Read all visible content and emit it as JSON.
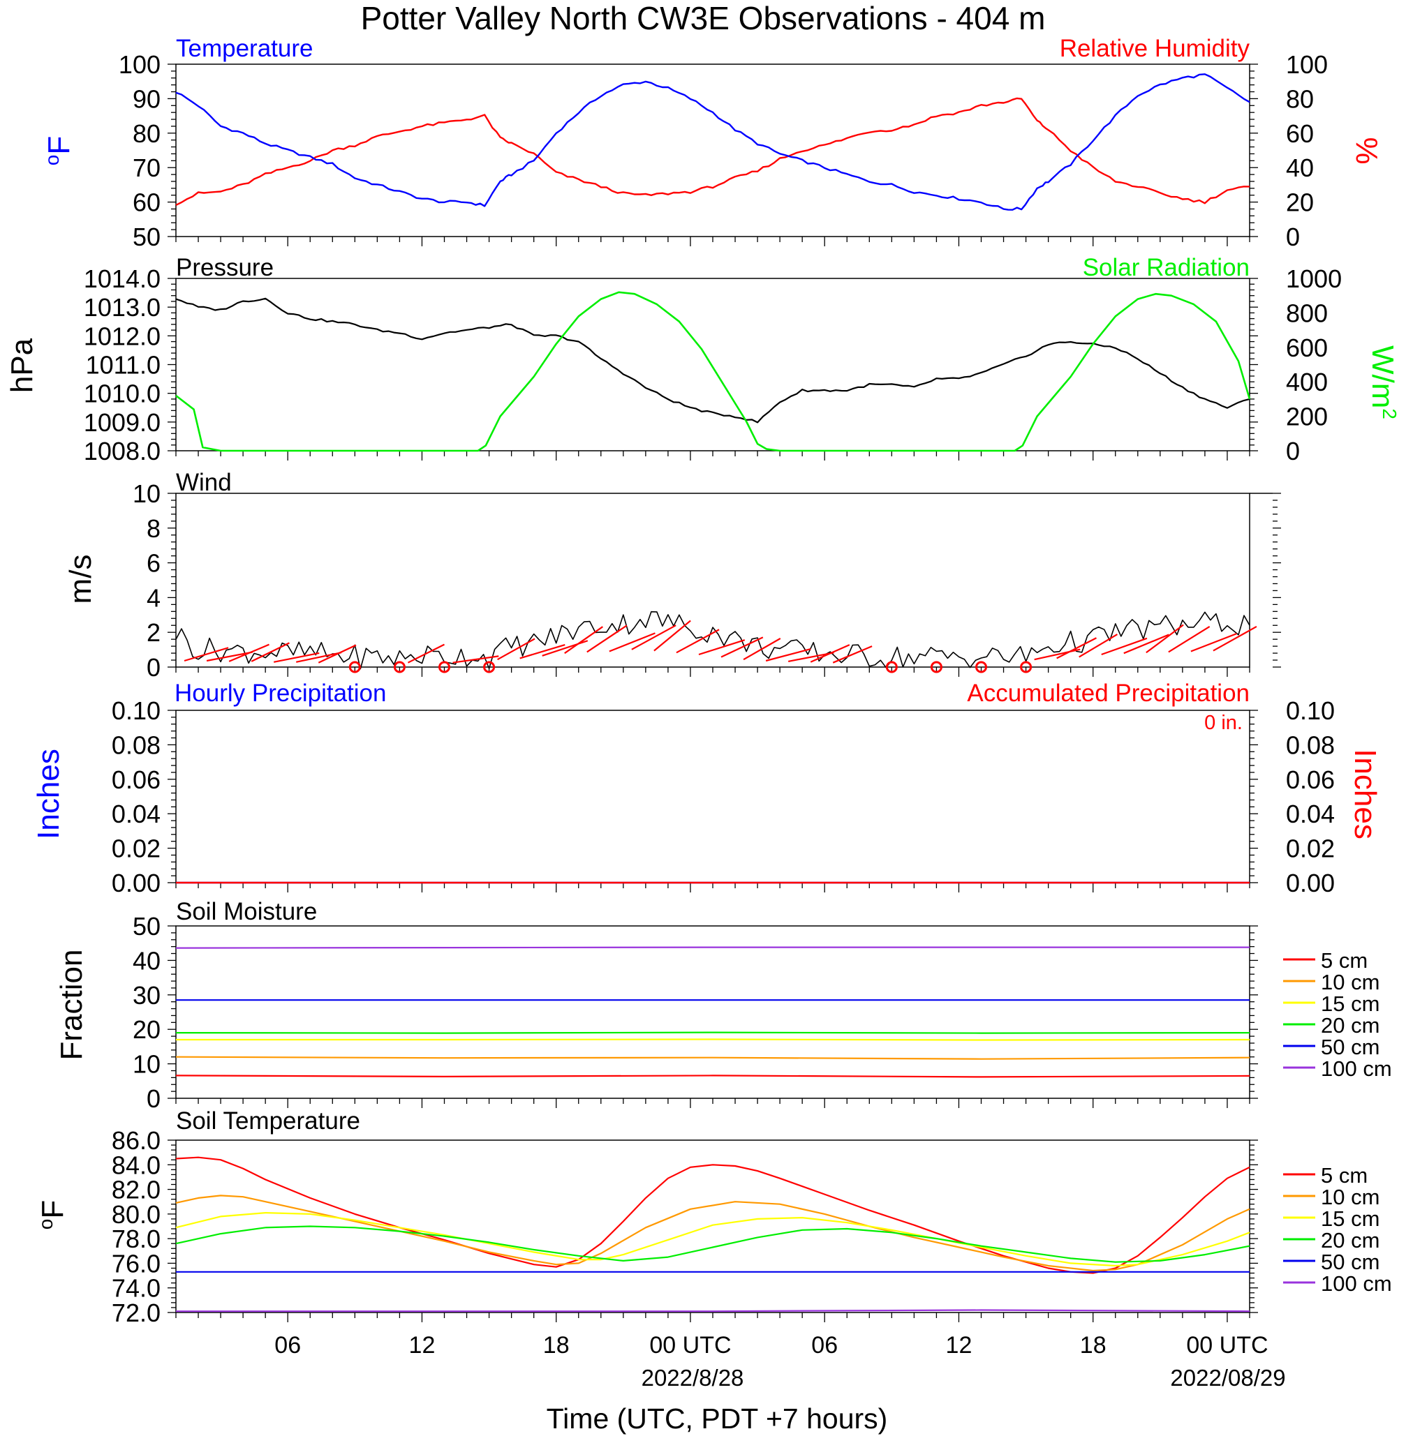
{
  "title": "Potter Valley North CW3E Observations - 404 m",
  "time_axis": {
    "ticks": [
      "06",
      "12",
      "18",
      "00 UTC",
      "06",
      "12",
      "18",
      "00 UTC"
    ],
    "dates": [
      "2022/8/28",
      "2022/08/29"
    ],
    "label": "Time (UTC, PDT +7 hours)"
  },
  "colors": {
    "temperature": "#0000ff",
    "humidity": "#ff0000",
    "pressure": "#000000",
    "solar": "#00ee00",
    "wind": "#000000",
    "barb": "#ff0000",
    "hourly_precip": "#0000ff",
    "accum_precip": "#ff0000",
    "depths": [
      "#ff0000",
      "#ff9900",
      "#ffff00",
      "#00ee00",
      "#0000ee",
      "#9933dd"
    ]
  },
  "panels": {
    "temp_rh": {
      "left_title": "Temperature",
      "right_title": "Relative Humidity",
      "left_units": "oF",
      "right_units": "%",
      "left_ticks": [
        "50",
        "60",
        "70",
        "80",
        "90",
        "100"
      ],
      "right_ticks": [
        "0",
        "20",
        "40",
        "60",
        "80",
        "100"
      ]
    },
    "pressure_solar": {
      "left_title": "Pressure",
      "right_title": "Solar Radiation",
      "left_units": "hPa",
      "right_units": "W/m2",
      "left_ticks": [
        "1008.0",
        "1009.0",
        "1010.0",
        "1011.0",
        "1012.0",
        "1013.0",
        "1014.0"
      ],
      "right_ticks": [
        "0",
        "200",
        "400",
        "600",
        "800",
        "1000"
      ]
    },
    "wind": {
      "title": "Wind",
      "units": "m/s",
      "ticks": [
        "0",
        "2",
        "4",
        "6",
        "8",
        "10"
      ]
    },
    "precip": {
      "left_title": "Hourly Precipitation",
      "right_title": "Accumulated Precipitation",
      "total": "0 in.",
      "left_units": "Inches",
      "right_units": "Inches",
      "ticks": [
        "0.00",
        "0.02",
        "0.04",
        "0.06",
        "0.08",
        "0.10"
      ]
    },
    "soil_moisture": {
      "title": "Soil Moisture",
      "units": "Fraction",
      "ticks": [
        "0",
        "10",
        "20",
        "30",
        "40",
        "50"
      ],
      "legend": [
        "5 cm",
        "10 cm",
        "15 cm",
        "20 cm",
        "50 cm",
        "100 cm"
      ]
    },
    "soil_temp": {
      "title": "Soil Temperature",
      "units": "oF",
      "ticks": [
        "72.0",
        "74.0",
        "76.0",
        "78.0",
        "80.0",
        "82.0",
        "84.0",
        "86.0"
      ],
      "legend": [
        "5 cm",
        "10 cm",
        "15 cm",
        "20 cm",
        "50 cm",
        "100 cm"
      ]
    }
  },
  "chart_data": [
    {
      "type": "line",
      "title": "Temperature / Relative Humidity",
      "x_units": "hours since 2022-08-27 00 UTC",
      "xlim": [
        1,
        49
      ],
      "ylim": [
        50,
        100
      ],
      "y2lim": [
        0,
        100
      ],
      "series": [
        {
          "name": "Temperature",
          "axis": "left",
          "x": [
            1,
            2,
            3,
            4,
            5,
            6,
            7,
            8,
            9,
            10,
            11,
            12,
            13,
            14,
            14.8,
            15.5,
            16,
            17,
            18,
            19,
            20,
            21,
            22,
            23,
            24,
            25,
            26,
            27,
            28,
            29,
            30,
            31,
            32,
            33,
            34,
            35,
            36,
            37,
            38,
            38.8,
            39.5,
            40,
            41,
            42,
            43,
            44,
            45,
            46,
            47,
            48,
            49
          ],
          "y": [
            92,
            88,
            82,
            80,
            77,
            75,
            73,
            71,
            67,
            65,
            63,
            61,
            60,
            60,
            59,
            66,
            68,
            72,
            80,
            86,
            91,
            94,
            95,
            93,
            90,
            86,
            81,
            77,
            74,
            72,
            70,
            68,
            66,
            65,
            63,
            62,
            61,
            60,
            58,
            58,
            64,
            66,
            71,
            78,
            85,
            91,
            94,
            96,
            97,
            93,
            89
          ]
        },
        {
          "name": "Relative Humidity",
          "axis": "right",
          "x": [
            1,
            2,
            3,
            4,
            5,
            6,
            7,
            8,
            9,
            10,
            11,
            12,
            13,
            14,
            14.8,
            15.5,
            16,
            17,
            18,
            19,
            20,
            21,
            22,
            23,
            24,
            25,
            26,
            27,
            28,
            29,
            30,
            31,
            32,
            33,
            34,
            35,
            36,
            37,
            38,
            38.8,
            39.5,
            40,
            41,
            42,
            43,
            44,
            45,
            46,
            47,
            48,
            49
          ],
          "y": [
            19,
            25,
            26,
            30,
            36,
            40,
            44,
            50,
            53,
            58,
            61,
            64,
            66,
            68,
            70,
            57,
            54,
            48,
            37,
            33,
            29,
            25,
            24,
            25,
            26,
            29,
            34,
            38,
            45,
            50,
            53,
            57,
            61,
            62,
            65,
            70,
            72,
            76,
            78,
            80,
            67,
            62,
            50,
            40,
            32,
            29,
            25,
            22,
            20,
            27,
            29
          ]
        }
      ]
    },
    {
      "type": "line",
      "title": "Pressure / Solar Radiation",
      "x_units": "hours since 2022-08-27 00 UTC",
      "xlim": [
        1,
        49
      ],
      "ylim": [
        1008,
        1014
      ],
      "y2lim": [
        0,
        1000
      ],
      "series": [
        {
          "name": "Pressure",
          "axis": "left",
          "x": [
            1,
            2,
            3,
            4,
            5,
            6,
            7,
            8,
            9,
            10,
            11,
            12,
            13,
            14,
            15,
            16,
            17,
            18,
            19,
            20,
            21,
            22,
            23,
            24,
            25,
            26,
            27,
            28,
            29,
            30,
            31,
            32,
            33,
            34,
            35,
            36,
            37,
            38,
            39,
            40,
            41,
            42,
            43,
            44,
            45,
            46,
            47,
            48,
            49
          ],
          "y": [
            1013.3,
            1013.0,
            1012.9,
            1013.2,
            1013.3,
            1012.8,
            1012.6,
            1012.5,
            1012.4,
            1012.2,
            1012.1,
            1011.9,
            1012.1,
            1012.2,
            1012.3,
            1012.4,
            1012.0,
            1012.0,
            1011.8,
            1011.2,
            1010.7,
            1010.2,
            1009.8,
            1009.5,
            1009.3,
            1009.2,
            1009.0,
            1009.7,
            1010.1,
            1010.1,
            1010.1,
            1010.3,
            1010.3,
            1010.2,
            1010.5,
            1010.5,
            1010.7,
            1011.0,
            1011.3,
            1011.7,
            1011.8,
            1011.7,
            1011.6,
            1011.2,
            1010.7,
            1010.2,
            1009.8,
            1009.5,
            1009.8
          ]
        },
        {
          "name": "Solar Radiation",
          "axis": "right",
          "x": [
            1,
            1.8,
            2.2,
            3,
            5,
            8,
            11,
            13,
            14.5,
            14.85,
            15.5,
            17,
            18,
            19,
            20,
            20.8,
            21.5,
            22.5,
            23.5,
            24.5,
            25.5,
            26.5,
            27,
            27.4,
            28,
            31,
            34,
            37,
            38.5,
            38.85,
            39.5,
            41,
            42,
            43,
            44,
            44.8,
            45.5,
            46.5,
            47.5,
            48.5,
            49
          ],
          "y": [
            320,
            240,
            20,
            0,
            0,
            0,
            0,
            0,
            0,
            30,
            200,
            430,
            620,
            780,
            880,
            920,
            910,
            850,
            750,
            590,
            380,
            170,
            40,
            10,
            0,
            0,
            0,
            0,
            0,
            30,
            200,
            430,
            620,
            780,
            880,
            910,
            900,
            850,
            750,
            520,
            300
          ]
        }
      ]
    },
    {
      "type": "line",
      "title": "Wind",
      "x_units": "hours since 2022-08-27 00 UTC",
      "xlim": [
        1,
        49
      ],
      "ylim": [
        0,
        10
      ],
      "series": [
        {
          "name": "Wind speed",
          "x": [
            1,
            2,
            3,
            4,
            5,
            6,
            7,
            8,
            9,
            10,
            11,
            12,
            13,
            14,
            15,
            16,
            17,
            18,
            19,
            20,
            21,
            22,
            23,
            24,
            25,
            26,
            27,
            28,
            29,
            30,
            31,
            32,
            33,
            34,
            35,
            36,
            37,
            38,
            39,
            40,
            41,
            42,
            43,
            44,
            45,
            46,
            47,
            48,
            49
          ],
          "y": [
            2.0,
            1.0,
            1.0,
            0.9,
            0.9,
            0.8,
            0.8,
            0.7,
            0.6,
            0.6,
            0.5,
            0.7,
            0.6,
            0.7,
            0.6,
            1.2,
            1.4,
            1.8,
            2.2,
            2.4,
            2.5,
            2.8,
            2.6,
            2.3,
            2.0,
            1.6,
            1.2,
            1.0,
            0.9,
            0.8,
            0.7,
            0.6,
            0.6,
            0.6,
            0.6,
            0.6,
            0.6,
            0.6,
            0.6,
            1.2,
            1.4,
            1.6,
            2.0,
            2.2,
            2.3,
            2.4,
            2.5,
            2.6,
            2.4
          ]
        }
      ]
    },
    {
      "type": "line",
      "title": "Hourly Precipitation / Accumulated Precipitation",
      "x_units": "hours since 2022-08-27 00 UTC",
      "xlim": [
        1,
        49
      ],
      "ylim": [
        0,
        0.1
      ],
      "y2lim": [
        0,
        0.1
      ],
      "series": [
        {
          "name": "Hourly Precipitation",
          "axis": "left",
          "x": [
            1,
            49
          ],
          "y": [
            0,
            0
          ]
        },
        {
          "name": "Accumulated Precipitation",
          "axis": "right",
          "x": [
            1,
            49
          ],
          "y": [
            0,
            0
          ]
        }
      ]
    },
    {
      "type": "line",
      "title": "Soil Moisture",
      "x_units": "hours since 2022-08-27 00 UTC",
      "xlim": [
        1,
        49
      ],
      "ylim": [
        0,
        50
      ],
      "series": [
        {
          "name": "5 cm",
          "x": [
            1,
            13,
            25,
            37,
            49
          ],
          "y": [
            6.6,
            6.3,
            6.6,
            6.2,
            6.5
          ]
        },
        {
          "name": "10 cm",
          "x": [
            1,
            13,
            25,
            37,
            49
          ],
          "y": [
            12.0,
            11.7,
            11.8,
            11.4,
            11.8
          ]
        },
        {
          "name": "15 cm",
          "x": [
            1,
            13,
            25,
            37,
            49
          ],
          "y": [
            17.0,
            17.0,
            17.1,
            16.9,
            17.0
          ]
        },
        {
          "name": "20 cm",
          "x": [
            1,
            13,
            25,
            37,
            49
          ],
          "y": [
            19.0,
            18.9,
            19.1,
            18.9,
            19.0
          ]
        },
        {
          "name": "50 cm",
          "x": [
            1,
            49
          ],
          "y": [
            28.5,
            28.5
          ]
        },
        {
          "name": "100 cm",
          "x": [
            1,
            25,
            49
          ],
          "y": [
            43.6,
            43.8,
            43.8
          ]
        }
      ]
    },
    {
      "type": "line",
      "title": "Soil Temperature",
      "x_units": "hours since 2022-08-27 00 UTC",
      "xlim": [
        1,
        49
      ],
      "ylim": [
        72,
        86
      ],
      "series": [
        {
          "name": "5 cm",
          "x": [
            1,
            2,
            3,
            4,
            5,
            7,
            9,
            11,
            13,
            15,
            17,
            18,
            19,
            20,
            21,
            22,
            23,
            24,
            25,
            26,
            27,
            28,
            30,
            32,
            34,
            36,
            38,
            40,
            41,
            42,
            43,
            44,
            45,
            46,
            47,
            48,
            49
          ],
          "y": [
            84.5,
            84.6,
            84.4,
            83.7,
            82.8,
            81.3,
            80.0,
            78.9,
            77.9,
            76.8,
            75.9,
            75.7,
            76.3,
            77.6,
            79.4,
            81.3,
            82.9,
            83.8,
            84.0,
            83.9,
            83.5,
            82.9,
            81.6,
            80.3,
            79.1,
            77.8,
            76.6,
            75.6,
            75.3,
            75.2,
            75.6,
            76.6,
            78.1,
            79.7,
            81.4,
            82.9,
            83.8
          ]
        },
        {
          "name": "10 cm",
          "x": [
            1,
            2,
            3,
            4,
            5,
            7,
            9,
            11,
            13,
            15,
            17,
            18,
            19,
            20,
            22,
            24,
            26,
            28,
            30,
            32,
            34,
            36,
            38,
            40,
            42,
            43,
            44,
            46,
            48,
            49
          ],
          "y": [
            80.9,
            81.3,
            81.5,
            81.4,
            81.0,
            80.2,
            79.4,
            78.6,
            77.8,
            76.9,
            76.2,
            75.9,
            76.0,
            76.8,
            78.9,
            80.4,
            81.0,
            80.8,
            80.0,
            79.0,
            78.1,
            77.3,
            76.5,
            75.8,
            75.4,
            75.5,
            75.9,
            77.5,
            79.6,
            80.4
          ]
        },
        {
          "name": "15 cm",
          "x": [
            1,
            3,
            5,
            7,
            9,
            11,
            13,
            15,
            17,
            19,
            20,
            21,
            23,
            25,
            27,
            29,
            31,
            33,
            35,
            37,
            39,
            41,
            43,
            44,
            46,
            48,
            49
          ],
          "y": [
            78.9,
            79.8,
            80.1,
            80.0,
            79.5,
            78.9,
            78.3,
            77.6,
            76.9,
            76.3,
            76.3,
            76.7,
            77.9,
            79.1,
            79.6,
            79.7,
            79.3,
            78.7,
            78.0,
            77.3,
            76.6,
            76.0,
            75.8,
            75.9,
            76.7,
            77.8,
            78.5
          ]
        },
        {
          "name": "20 cm",
          "x": [
            1,
            3,
            5,
            7,
            9,
            11,
            13,
            15,
            17,
            19,
            21,
            23,
            25,
            27,
            29,
            31,
            33,
            35,
            37,
            39,
            41,
            43,
            45,
            47,
            49
          ],
          "y": [
            77.6,
            78.4,
            78.9,
            79.0,
            78.9,
            78.6,
            78.2,
            77.7,
            77.1,
            76.6,
            76.2,
            76.5,
            77.3,
            78.1,
            78.7,
            78.8,
            78.5,
            78.0,
            77.4,
            76.9,
            76.4,
            76.1,
            76.2,
            76.7,
            77.4
          ]
        },
        {
          "name": "50 cm",
          "x": [
            1,
            13,
            25,
            37,
            49
          ],
          "y": [
            75.3,
            75.3,
            75.3,
            75.3,
            75.3
          ]
        },
        {
          "name": "100 cm",
          "x": [
            1,
            13,
            25,
            37,
            49
          ],
          "y": [
            72.1,
            72.1,
            72.1,
            72.2,
            72.1
          ]
        }
      ]
    }
  ]
}
